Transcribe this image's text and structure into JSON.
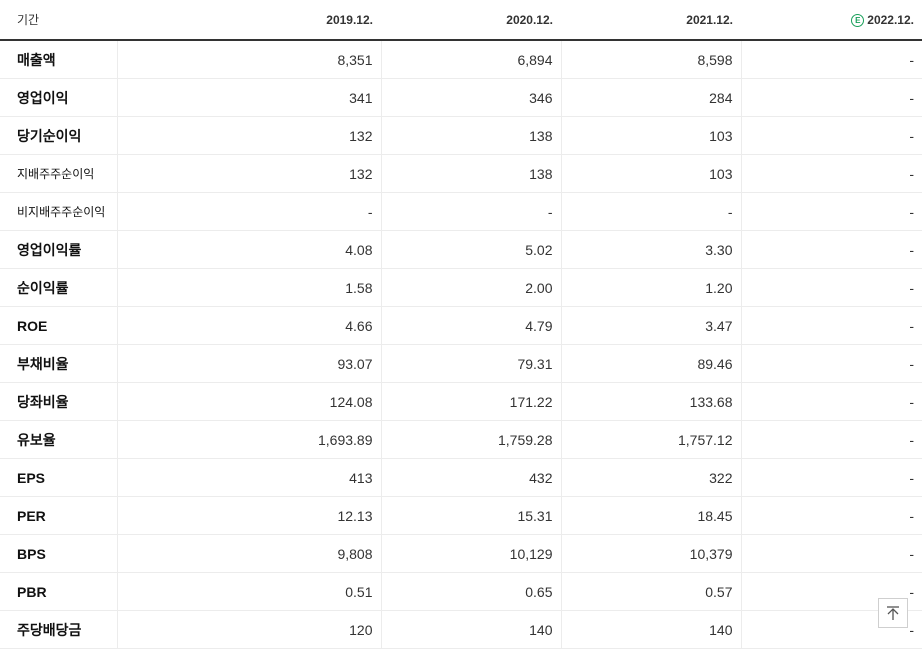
{
  "header": {
    "period_label": "기간",
    "columns": [
      "2019.12.",
      "2020.12.",
      "2021.12.",
      "2022.12."
    ],
    "estimate_badge": "E"
  },
  "rows": [
    {
      "label": "매출액",
      "values": [
        "8,351",
        "6,894",
        "8,598",
        "-"
      ]
    },
    {
      "label": "영업이익",
      "values": [
        "341",
        "346",
        "284",
        "-"
      ]
    },
    {
      "label": "당기순이익",
      "values": [
        "132",
        "138",
        "103",
        "-"
      ]
    },
    {
      "label": "지배주주순이익",
      "values": [
        "132",
        "138",
        "103",
        "-"
      ]
    },
    {
      "label": "비지배주주순이익",
      "values": [
        "-",
        "-",
        "-",
        "-"
      ]
    },
    {
      "label": "영업이익률",
      "values": [
        "4.08",
        "5.02",
        "3.30",
        "-"
      ]
    },
    {
      "label": "순이익률",
      "values": [
        "1.58",
        "2.00",
        "1.20",
        "-"
      ]
    },
    {
      "label": "ROE",
      "values": [
        "4.66",
        "4.79",
        "3.47",
        "-"
      ]
    },
    {
      "label": "부채비율",
      "values": [
        "93.07",
        "79.31",
        "89.46",
        "-"
      ]
    },
    {
      "label": "당좌비율",
      "values": [
        "124.08",
        "171.22",
        "133.68",
        "-"
      ]
    },
    {
      "label": "유보율",
      "values": [
        "1,693.89",
        "1,759.28",
        "1,757.12",
        "-"
      ]
    },
    {
      "label": "EPS",
      "values": [
        "413",
        "432",
        "322",
        "-"
      ]
    },
    {
      "label": "PER",
      "values": [
        "12.13",
        "15.31",
        "18.45",
        "-"
      ]
    },
    {
      "label": "BPS",
      "values": [
        "9,808",
        "10,129",
        "10,379",
        "-"
      ]
    },
    {
      "label": "PBR",
      "values": [
        "0.51",
        "0.65",
        "0.57",
        "-"
      ]
    },
    {
      "label": "주당배당금",
      "values": [
        "120",
        "140",
        "140",
        "-"
      ]
    }
  ],
  "controls": {
    "scroll_top_icon": "arrow-up-to-top-icon"
  }
}
